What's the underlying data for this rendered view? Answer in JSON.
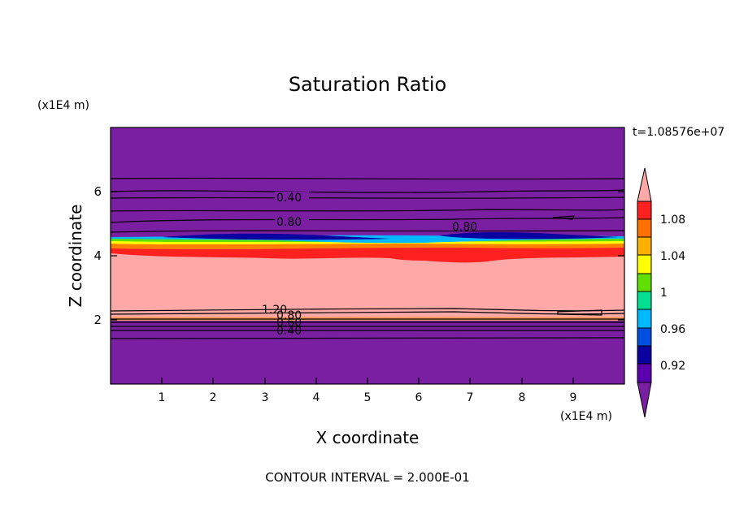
{
  "chart_data": {
    "type": "heatmap",
    "title": "Saturation Ratio",
    "xlabel": "X coordinate",
    "ylabel": "Z coordinate",
    "x_unit": "(x1E4 m)",
    "y_unit": "(x1E4 m)",
    "time_label": "t=1.08576e+07",
    "footer": "CONTOUR INTERVAL = 2.000E-01",
    "xlim": [
      0,
      10
    ],
    "ylim": [
      0,
      8
    ],
    "xticks": [
      "1",
      "2",
      "3",
      "4",
      "5",
      "6",
      "7",
      "8",
      "9"
    ],
    "yticks": [
      "2",
      "4",
      "6"
    ],
    "colorbar": {
      "labels": [
        "0.92",
        "0.96",
        "1",
        "1.04",
        "1.08"
      ],
      "levels": [
        0.9,
        0.92,
        0.94,
        0.96,
        0.98,
        1.0,
        1.02,
        1.04,
        1.06,
        1.08,
        1.1
      ],
      "colors": [
        "#7a1fa2",
        "#5b00b0",
        "#0b00a0",
        "#0050e0",
        "#00b8ff",
        "#00e090",
        "#60e000",
        "#ffff00",
        "#ffb000",
        "#ff7000",
        "#ff2020",
        "#ffa8a8"
      ],
      "extend": "both"
    },
    "contour_labels": [
      "0.40",
      "0.80",
      "0.80",
      "1.20",
      "0.80",
      "0.60",
      "0.40"
    ],
    "bands": [
      {
        "z_bottom": 0.0,
        "z_top": 1.95,
        "value": 0.4
      },
      {
        "z_bottom": 1.95,
        "z_top": 2.2,
        "value": 0.8
      },
      {
        "z_bottom": 2.2,
        "z_top": 4.1,
        "value": 1.1
      },
      {
        "z_bottom": 4.1,
        "z_top": 4.3,
        "value": 1.07
      },
      {
        "z_bottom": 4.3,
        "z_top": 4.45,
        "value": 1.0
      },
      {
        "z_bottom": 4.45,
        "z_top": 4.6,
        "value": 0.93
      },
      {
        "z_bottom": 4.6,
        "z_top": 8.0,
        "value": 0.4
      }
    ]
  }
}
